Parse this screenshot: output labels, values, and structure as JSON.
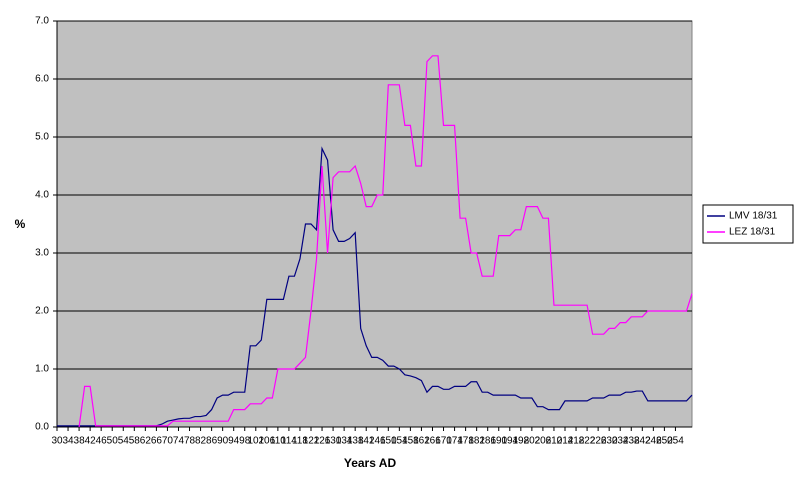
{
  "chart_data": {
    "type": "line",
    "xlabel": "Years AD",
    "ylabel": "%",
    "x": [
      30,
      32,
      34,
      36,
      38,
      40,
      42,
      44,
      46,
      48,
      50,
      52,
      54,
      56,
      58,
      60,
      62,
      64,
      66,
      68,
      70,
      72,
      74,
      76,
      78,
      80,
      82,
      84,
      86,
      88,
      90,
      92,
      94,
      96,
      98,
      100,
      102,
      104,
      106,
      108,
      110,
      112,
      114,
      116,
      118,
      120,
      122,
      124,
      126,
      128,
      130,
      132,
      134,
      136,
      138,
      140,
      142,
      144,
      146,
      148,
      150,
      152,
      154,
      156,
      158,
      160,
      162,
      164,
      166,
      168,
      170,
      172,
      174,
      176,
      178,
      180,
      182,
      184,
      186,
      188,
      190,
      192,
      194,
      196,
      198,
      200,
      202,
      204,
      206,
      208,
      210,
      212,
      214,
      216,
      218,
      220,
      222,
      224,
      226,
      228,
      230,
      232,
      234,
      236,
      238,
      240,
      242,
      244,
      246,
      248,
      250,
      252,
      254,
      256,
      258,
      260
    ],
    "series": [
      {
        "name": "LMV 18/31",
        "color": "#000080",
        "values": [
          0.02,
          0.02,
          0.02,
          0.02,
          0.02,
          0.02,
          0.02,
          0.02,
          0.02,
          0.02,
          0.02,
          0.02,
          0.02,
          0.02,
          0.02,
          0.02,
          0.02,
          0.02,
          0.02,
          0.05,
          0.1,
          0.12,
          0.14,
          0.15,
          0.15,
          0.18,
          0.18,
          0.2,
          0.3,
          0.5,
          0.55,
          0.55,
          0.6,
          0.6,
          0.6,
          1.4,
          1.4,
          1.5,
          2.2,
          2.2,
          2.2,
          2.2,
          2.6,
          2.6,
          2.9,
          3.5,
          3.5,
          3.4,
          4.8,
          4.6,
          3.4,
          3.2,
          3.2,
          3.25,
          3.35,
          1.7,
          1.4,
          1.2,
          1.2,
          1.15,
          1.05,
          1.05,
          1.0,
          0.9,
          0.88,
          0.85,
          0.8,
          0.6,
          0.7,
          0.7,
          0.65,
          0.65,
          0.7,
          0.7,
          0.7,
          0.78,
          0.78,
          0.6,
          0.6,
          0.55,
          0.55,
          0.55,
          0.55,
          0.55,
          0.5,
          0.5,
          0.5,
          0.35,
          0.35,
          0.3,
          0.3,
          0.3,
          0.45,
          0.45,
          0.45,
          0.45,
          0.45,
          0.5,
          0.5,
          0.5,
          0.55,
          0.55,
          0.55,
          0.6,
          0.6,
          0.62,
          0.62,
          0.45,
          0.45,
          0.45,
          0.45,
          0.45,
          0.45,
          0.45,
          0.45,
          0.55
        ]
      },
      {
        "name": "LEZ 18/31",
        "color": "#ff00ff",
        "values": [
          null,
          null,
          null,
          null,
          0,
          0.7,
          0.7,
          0.02,
          0.02,
          0.02,
          0.02,
          0.02,
          0.02,
          0.02,
          0.02,
          0.02,
          0.02,
          0.02,
          0.02,
          0.02,
          0.02,
          0.1,
          0.1,
          0.1,
          0.1,
          0.1,
          0.1,
          0.1,
          0.1,
          0.1,
          0.1,
          0.1,
          0.3,
          0.3,
          0.3,
          0.4,
          0.4,
          0.4,
          0.5,
          0.5,
          1,
          1,
          1,
          1,
          1.1,
          1.2,
          2,
          2.9,
          4.5,
          3,
          4.3,
          4.4,
          4.4,
          4.4,
          4.5,
          4.2,
          3.8,
          3.8,
          4,
          4,
          5.9,
          5.9,
          5.9,
          5.2,
          5.2,
          4.5,
          4.5,
          6.3,
          6.4,
          6.4,
          5.2,
          5.2,
          5.2,
          3.6,
          3.6,
          3,
          3,
          2.6,
          2.6,
          2.6,
          3.3,
          3.3,
          3.3,
          3.4,
          3.4,
          3.8,
          3.8,
          3.8,
          3.6,
          3.6,
          2.1,
          2.1,
          2.1,
          2.1,
          2.1,
          2.1,
          2.1,
          1.6,
          1.6,
          1.6,
          1.7,
          1.7,
          1.8,
          1.8,
          1.9,
          1.9,
          1.9,
          2,
          2,
          2,
          2,
          2,
          2,
          2,
          2,
          2.3
        ]
      }
    ],
    "xlim": [
      30,
      260
    ],
    "ylim": [
      0,
      7
    ],
    "xticks": [
      30,
      34,
      38,
      42,
      46,
      50,
      54,
      58,
      62,
      66,
      70,
      74,
      78,
      82,
      86,
      90,
      94,
      98,
      102,
      106,
      110,
      114,
      118,
      122,
      126,
      130,
      134,
      138,
      142,
      146,
      150,
      154,
      158,
      162,
      166,
      170,
      174,
      178,
      182,
      186,
      190,
      194,
      198,
      202,
      206,
      210,
      214,
      218,
      222,
      226,
      230,
      234,
      238,
      242,
      246,
      250,
      254
    ],
    "yticks": [
      {
        "value": 0,
        "label": "0.0"
      },
      {
        "value": 1,
        "label": "1.0"
      },
      {
        "value": 2,
        "label": "2.0"
      },
      {
        "value": 3,
        "label": "3.0"
      },
      {
        "value": 4,
        "label": "4.0"
      },
      {
        "value": 5,
        "label": "5.0"
      },
      {
        "value": 6,
        "label": "6.0"
      },
      {
        "value": 7,
        "label": "7.0"
      }
    ],
    "grid": true,
    "plot_background": "#c0c0c0",
    "legend": "right"
  }
}
